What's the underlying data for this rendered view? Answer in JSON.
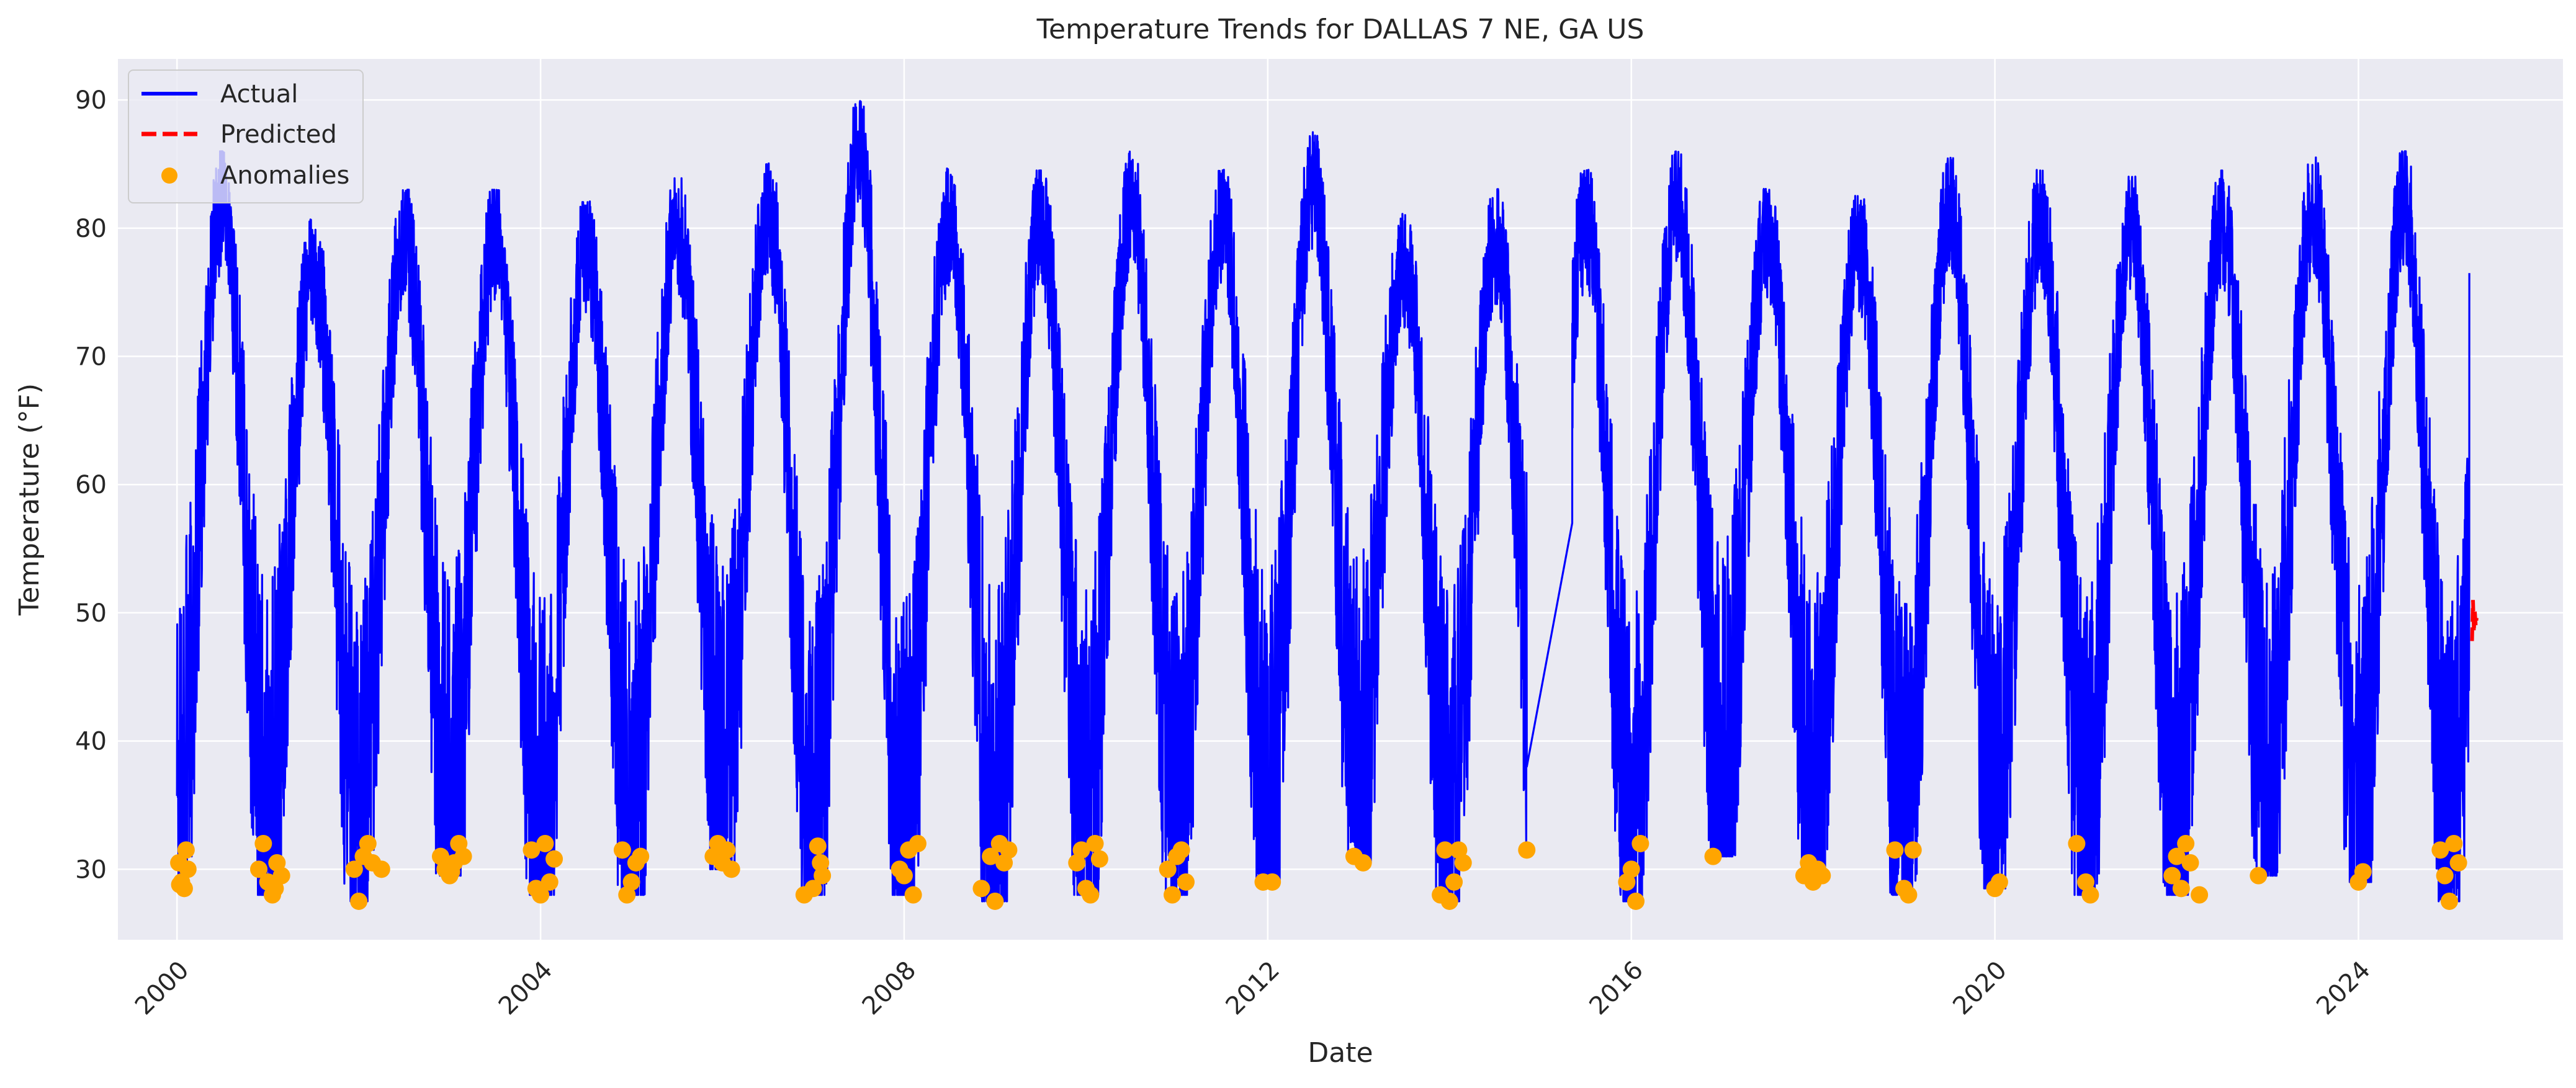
{
  "chart_data": {
    "type": "line",
    "title": "Temperature Trends for DALLAS 7 NE, GA US",
    "xlabel": "Date",
    "ylabel": "Temperature (°F)",
    "xlim": [
      1999.35,
      2026.25
    ],
    "ylim": [
      24.5,
      93.2
    ],
    "x_ticks": [
      2000,
      2004,
      2008,
      2012,
      2016,
      2020,
      2024
    ],
    "x_tick_labels": [
      "2000",
      "2004",
      "2008",
      "2012",
      "2016",
      "2020",
      "2024"
    ],
    "y_ticks": [
      30,
      40,
      50,
      60,
      70,
      80,
      90
    ],
    "y_tick_labels": [
      "30",
      "40",
      "50",
      "60",
      "70",
      "80",
      "90"
    ],
    "grid": true,
    "legend_position": "top-left",
    "legend": {
      "actual": "Actual",
      "predicted": "Predicted",
      "anomalies": "Anomalies"
    },
    "colors": {
      "actual": "#0000ff",
      "predicted": "#ff0000",
      "anomalies": "#ffa500",
      "plot_background": "#eaeaf2",
      "grid": "#ffffff"
    },
    "annual_cycle": {
      "years": [
        2000,
        2001,
        2002,
        2003,
        2004,
        2005,
        2006,
        2007,
        2008,
        2009,
        2010,
        2011,
        2012,
        2013,
        2014,
        2015,
        2016,
        2017,
        2018,
        2019,
        2020,
        2021,
        2022,
        2023,
        2024,
        2025
      ],
      "summer_peak": [
        86,
        80.5,
        83,
        83,
        82,
        84,
        85,
        90,
        84.5,
        84.5,
        86,
        84.5,
        87.5,
        81,
        83,
        84.5,
        86,
        83,
        82.5,
        85.5,
        84.5,
        84,
        84.5,
        85.5,
        86,
        null
      ],
      "winter_trough": [
        28.5,
        28,
        27.5,
        29.5,
        28,
        28,
        30,
        28,
        28,
        27.5,
        28,
        28,
        29,
        30.5,
        27.5,
        31.5,
        27.5,
        31,
        29,
        28,
        28.5,
        28,
        28,
        29.5,
        29,
        27.5
      ]
    },
    "gap": {
      "from": 2014.85,
      "to": 2015.35,
      "start_value": 38,
      "end_value": 57
    },
    "actual_end": {
      "x": 2025.22,
      "y": 76.5
    },
    "predicted": {
      "x": [
        2025.25,
        2025.26,
        2025.27,
        2025.28,
        2025.29,
        2025.3
      ],
      "y": [
        47.8,
        51.0,
        48.5,
        50.2,
        49.0,
        49.6
      ]
    },
    "anomalies": {
      "x": [
        2000.02,
        2000.05,
        2000.08,
        2000.1,
        2000.12,
        2000.03,
        2000.9,
        2000.95,
        2001.0,
        2001.05,
        2001.1,
        2001.15,
        2001.08,
        2001.95,
        2002.0,
        2002.05,
        2002.1,
        2002.15,
        2002.25,
        2002.9,
        2002.95,
        2003.0,
        2003.05,
        2003.1,
        2003.15,
        2003.02,
        2003.9,
        2003.95,
        2004.0,
        2004.05,
        2004.1,
        2004.15,
        2004.9,
        2004.95,
        2005.0,
        2005.05,
        2005.1,
        2005.9,
        2005.95,
        2006.0,
        2006.05,
        2006.1,
        2006.9,
        2007.0,
        2007.05,
        2007.08,
        2007.1,
        2007.95,
        2008.0,
        2008.05,
        2008.1,
        2008.15,
        2008.85,
        2008.95,
        2009.0,
        2009.05,
        2009.1,
        2009.15,
        2009.9,
        2009.95,
        2010.0,
        2010.05,
        2010.1,
        2010.15,
        2010.9,
        2010.95,
        2011.0,
        2011.05,
        2011.1,
        2011.95,
        2012.05,
        2012.95,
        2013.05,
        2013.9,
        2013.95,
        2014.0,
        2014.05,
        2014.1,
        2014.15,
        2014.85,
        2015.95,
        2016.0,
        2016.05,
        2016.1,
        2016.9,
        2017.9,
        2017.95,
        2018.0,
        2018.05,
        2018.1,
        2018.9,
        2019.0,
        2019.05,
        2019.1,
        2020.0,
        2020.05,
        2020.9,
        2021.0,
        2021.05,
        2021.95,
        2022.0,
        2022.05,
        2022.1,
        2022.15,
        2022.25,
        2022.9,
        2024.0,
        2024.05,
        2024.9,
        2024.95,
        2025.0,
        2025.05,
        2025.1
      ],
      "y": [
        30.5,
        29,
        28.5,
        31.5,
        30,
        28.8,
        30,
        32,
        29,
        28,
        30.5,
        29.5,
        28.5,
        30,
        27.5,
        31,
        32,
        30.5,
        30,
        31,
        30,
        29.5,
        30.5,
        32,
        31,
        29.8,
        31.5,
        28.5,
        28,
        32,
        29,
        30.8,
        31.5,
        28,
        29,
        30.5,
        31,
        31,
        32,
        30.5,
        31.5,
        30,
        28,
        28.5,
        31.8,
        30.5,
        29.5,
        30,
        29.5,
        31.5,
        28,
        32,
        28.5,
        31,
        27.5,
        32,
        30.5,
        31.5,
        30.5,
        31.5,
        28.5,
        28,
        32,
        30.8,
        30,
        28,
        31,
        31.5,
        29,
        29,
        29,
        31,
        30.5,
        28,
        31.5,
        27.5,
        29,
        31.5,
        30.5,
        31.5,
        29,
        30,
        27.5,
        32,
        31,
        29.5,
        30.5,
        29,
        30,
        29.5,
        31.5,
        28.5,
        28,
        31.5,
        28.5,
        29,
        32,
        29,
        28,
        29.5,
        31,
        28.5,
        32,
        30.5,
        28,
        29.5,
        29,
        29.8,
        31.5,
        29.5,
        27.5,
        32,
        30.5
      ]
    }
  }
}
